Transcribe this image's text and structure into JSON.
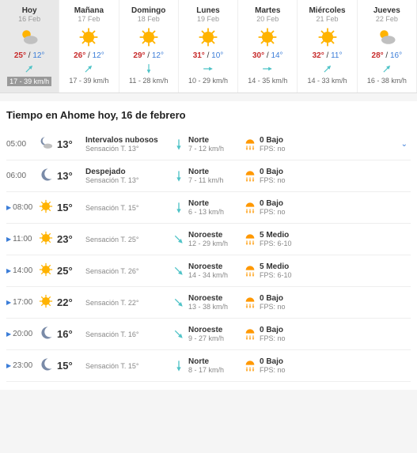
{
  "forecast": {
    "days": [
      {
        "name": "Hoy",
        "date": "16 Feb",
        "icon": "partly",
        "hi": "25°",
        "lo": "12°",
        "hiColor": "#c72c2c",
        "wind": "17 - 39 km/h",
        "windDir": 45,
        "today": true
      },
      {
        "name": "Mañana",
        "date": "17 Feb",
        "icon": "sun",
        "hi": "26°",
        "lo": "12°",
        "hiColor": "#c72c2c",
        "wind": "17 - 39 km/h",
        "windDir": 45
      },
      {
        "name": "Domingo",
        "date": "18 Feb",
        "icon": "sun",
        "hi": "29°",
        "lo": "12°",
        "hiColor": "#c72c2c",
        "wind": "11 - 28 km/h",
        "windDir": 180
      },
      {
        "name": "Lunes",
        "date": "19 Feb",
        "icon": "sun",
        "hi": "31°",
        "lo": "10°",
        "hiColor": "#c72c2c",
        "wind": "10 - 29 km/h",
        "windDir": 90
      },
      {
        "name": "Martes",
        "date": "20 Feb",
        "icon": "sun",
        "hi": "30°",
        "lo": "14°",
        "hiColor": "#c72c2c",
        "wind": "14 - 35 km/h",
        "windDir": 90
      },
      {
        "name": "Miércoles",
        "date": "21 Feb",
        "icon": "sun",
        "hi": "32°",
        "lo": "11°",
        "hiColor": "#c72c2c",
        "wind": "14 - 33 km/h",
        "windDir": 45
      },
      {
        "name": "Jueves",
        "date": "22 Feb",
        "icon": "partly",
        "hi": "28°",
        "lo": "16°",
        "hiColor": "#c72c2c",
        "wind": "16 - 38 km/h",
        "windDir": 45
      }
    ]
  },
  "hourly": {
    "title": "Tiempo en Ahome hoy, 16 de febrero",
    "rows": [
      {
        "time": "05:00",
        "mark": false,
        "icon": "nightpartly",
        "temp": "13°",
        "cond": "Intervalos nubosos",
        "feel": "Sensación T. 13°",
        "windDir": "Norte",
        "windSpd": "7 - 12 km/h",
        "windRot": 180,
        "uv": "0 Bajo",
        "fps": "FPS: no",
        "expand": true
      },
      {
        "time": "06:00",
        "mark": false,
        "icon": "moon",
        "temp": "13°",
        "cond": "Despejado",
        "feel": "Sensación T. 13°",
        "windDir": "Norte",
        "windSpd": "7 - 11 km/h",
        "windRot": 180,
        "uv": "0 Bajo",
        "fps": "FPS: no"
      },
      {
        "time": "08:00",
        "mark": true,
        "icon": "sun",
        "temp": "15°",
        "cond": "",
        "feel": "Sensación T. 15°",
        "windDir": "Norte",
        "windSpd": "6 - 13 km/h",
        "windRot": 180,
        "uv": "0 Bajo",
        "fps": "FPS: no"
      },
      {
        "time": "11:00",
        "mark": true,
        "icon": "sun",
        "temp": "23°",
        "cond": "",
        "feel": "Sensación T. 25°",
        "windDir": "Noroeste",
        "windSpd": "12 - 29 km/h",
        "windRot": 135,
        "uv": "5 Medio",
        "fps": "FPS: 6-10"
      },
      {
        "time": "14:00",
        "mark": true,
        "icon": "sun",
        "temp": "25°",
        "cond": "",
        "feel": "Sensación T. 26°",
        "windDir": "Noroeste",
        "windSpd": "14 - 34 km/h",
        "windRot": 135,
        "uv": "5 Medio",
        "fps": "FPS: 6-10"
      },
      {
        "time": "17:00",
        "mark": true,
        "icon": "sun",
        "temp": "22°",
        "cond": "",
        "feel": "Sensación T. 22°",
        "windDir": "Noroeste",
        "windSpd": "13 - 38 km/h",
        "windRot": 135,
        "uv": "0 Bajo",
        "fps": "FPS: no"
      },
      {
        "time": "20:00",
        "mark": true,
        "icon": "moon",
        "temp": "16°",
        "cond": "",
        "feel": "Sensación T. 16°",
        "windDir": "Noroeste",
        "windSpd": "9 - 27 km/h",
        "windRot": 135,
        "uv": "0 Bajo",
        "fps": "FPS: no"
      },
      {
        "time": "23:00",
        "mark": true,
        "icon": "moon",
        "temp": "15°",
        "cond": "",
        "feel": "Sensación T. 15°",
        "windDir": "Norte",
        "windSpd": "8 - 17 km/h",
        "windRot": 180,
        "uv": "0 Bajo",
        "fps": "FPS: no"
      }
    ]
  },
  "colors": {
    "sun": "#ffb300",
    "moon": "#7a8ba8",
    "cloud": "#c0c0c0",
    "wind": "#4fc3c7",
    "uv": "#ff9800"
  }
}
